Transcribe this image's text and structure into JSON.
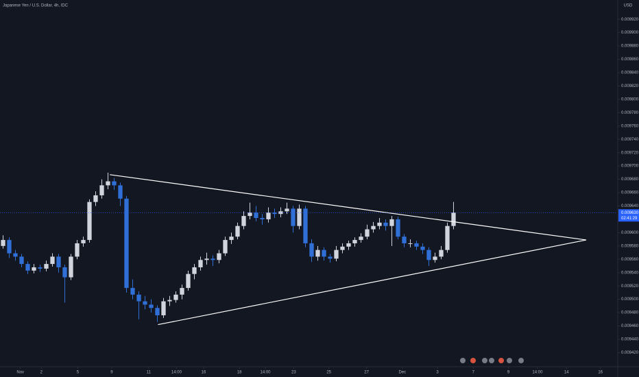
{
  "header": {
    "symbol": "Japanese Yen / U.S. Dollar, 4h, IDC",
    "currency": "USD"
  },
  "chart_data": {
    "type": "candlestick",
    "up_color": "#d1d4dc",
    "down_color": "#2f6fd6",
    "open": [
      0.00958,
      0.009589,
      0.009569,
      0.009564,
      0.009553,
      0.009543,
      0.009548,
      0.009546,
      0.009553,
      0.009564,
      0.009548,
      0.009533,
      0.009564,
      0.009584,
      0.009589,
      0.009646,
      0.009656,
      0.009671,
      0.009677,
      0.009671,
      0.009651,
      0.009517,
      0.009507,
      0.009497,
      0.009492,
      0.009487,
      0.009476,
      0.009497,
      0.009499,
      0.009507,
      0.009517,
      0.009538,
      0.009548,
      0.009559,
      0.009561,
      0.009559,
      0.009569,
      0.009589,
      0.009594,
      0.00961,
      0.009625,
      0.00963,
      0.009622,
      0.00962,
      0.00963,
      0.009628,
      0.009632,
      0.009636,
      0.00961,
      0.009636,
      0.009584,
      0.009564,
      0.009574,
      0.009564,
      0.009561,
      0.009574,
      0.009579,
      0.009584,
      0.009589,
      0.009594,
      0.009605,
      0.00961,
      0.009615,
      0.00961,
      0.00962,
      0.009594,
      0.009584,
      0.009584,
      0.009579,
      0.009574,
      0.009559,
      0.009564,
      0.009574,
      0.00961
    ],
    "high": [
      0.009596,
      0.009593,
      0.009574,
      0.009568,
      0.009557,
      0.009553,
      0.009552,
      0.009558,
      0.009569,
      0.009568,
      0.009552,
      0.009568,
      0.009589,
      0.009594,
      0.00965,
      0.009662,
      0.00968,
      0.00969,
      0.009682,
      0.009675,
      0.009655,
      0.00953,
      0.009512,
      0.009505,
      0.0095,
      0.009491,
      0.009502,
      0.009505,
      0.009512,
      0.009522,
      0.009543,
      0.009553,
      0.009564,
      0.00957,
      0.009566,
      0.009574,
      0.009594,
      0.0096,
      0.009615,
      0.009632,
      0.009645,
      0.00964,
      0.009628,
      0.009638,
      0.009636,
      0.009638,
      0.009645,
      0.00964,
      0.009642,
      0.00964,
      0.00959,
      0.00958,
      0.009578,
      0.009568,
      0.00958,
      0.009584,
      0.009588,
      0.009593,
      0.009599,
      0.009612,
      0.009616,
      0.009622,
      0.00962,
      0.009625,
      0.009624,
      0.009598,
      0.00959,
      0.009588,
      0.009584,
      0.009578,
      0.00957,
      0.00958,
      0.009615,
      0.009646
    ],
    "low": [
      0.009576,
      0.009562,
      0.009558,
      0.009548,
      0.009538,
      0.009539,
      0.009541,
      0.009542,
      0.009549,
      0.00954,
      0.009495,
      0.009529,
      0.00956,
      0.009579,
      0.009585,
      0.00964,
      0.009651,
      0.009665,
      0.009664,
      0.00964,
      0.00951,
      0.0095,
      0.00947,
      0.009485,
      0.00948,
      0.009466,
      0.009472,
      0.00949,
      0.009495,
      0.0095,
      0.009513,
      0.00953,
      0.009543,
      0.009552,
      0.00955,
      0.009554,
      0.009565,
      0.009583,
      0.00959,
      0.009605,
      0.00962,
      0.009617,
      0.009612,
      0.009615,
      0.009622,
      0.009623,
      0.009628,
      0.0096,
      0.009605,
      0.009578,
      0.009556,
      0.009558,
      0.009558,
      0.009555,
      0.009557,
      0.009569,
      0.009574,
      0.009579,
      0.009585,
      0.00959,
      0.0096,
      0.009605,
      0.009603,
      0.00958,
      0.00959,
      0.009578,
      0.009578,
      0.009574,
      0.009568,
      0.00955,
      0.009555,
      0.00956,
      0.00957,
      0.009605
    ],
    "close": [
      0.009589,
      0.009569,
      0.009564,
      0.009553,
      0.009543,
      0.009548,
      0.009546,
      0.009553,
      0.009564,
      0.009548,
      0.009533,
      0.009564,
      0.009584,
      0.009589,
      0.009646,
      0.009656,
      0.009671,
      0.009677,
      0.009671,
      0.009651,
      0.009517,
      0.009507,
      0.009497,
      0.009492,
      0.009487,
      0.009476,
      0.009497,
      0.009499,
      0.009507,
      0.009517,
      0.009538,
      0.009548,
      0.009559,
      0.009561,
      0.009559,
      0.009569,
      0.009589,
      0.009594,
      0.00961,
      0.009625,
      0.00963,
      0.009622,
      0.00962,
      0.00963,
      0.009628,
      0.009632,
      0.009636,
      0.00961,
      0.009636,
      0.009584,
      0.009564,
      0.009574,
      0.009564,
      0.009561,
      0.009574,
      0.009579,
      0.009584,
      0.009589,
      0.009594,
      0.009605,
      0.00961,
      0.009615,
      0.00961,
      0.00962,
      0.009594,
      0.009584,
      0.009584,
      0.009579,
      0.009574,
      0.009559,
      0.009564,
      0.009574,
      0.00961,
      0.00963
    ],
    "ylim": [
      0.009404,
      0.009949
    ],
    "yticks": [
      {
        "value": 0.00942,
        "label": "0.009420"
      },
      {
        "value": 0.00944,
        "label": "0.009440"
      },
      {
        "value": 0.00946,
        "label": "0.009460"
      },
      {
        "value": 0.00948,
        "label": "0.009480"
      },
      {
        "value": 0.0095,
        "label": "0.009500"
      },
      {
        "value": 0.00952,
        "label": "0.009520"
      },
      {
        "value": 0.00954,
        "label": "0.009540"
      },
      {
        "value": 0.00956,
        "label": "0.009560"
      },
      {
        "value": 0.00958,
        "label": "0.009580"
      },
      {
        "value": 0.0096,
        "label": "0.009600"
      },
      {
        "value": 0.00962,
        "label": "0.009620"
      },
      {
        "value": 0.00964,
        "label": "0.009640"
      },
      {
        "value": 0.00966,
        "label": "0.009660"
      },
      {
        "value": 0.00968,
        "label": "0.009680"
      },
      {
        "value": 0.0097,
        "label": "0.009700"
      },
      {
        "value": 0.00972,
        "label": "0.009720"
      },
      {
        "value": 0.00974,
        "label": "0.009740"
      },
      {
        "value": 0.00976,
        "label": "0.009760"
      },
      {
        "value": 0.00978,
        "label": "0.009780"
      },
      {
        "value": 0.0098,
        "label": "0.009800"
      },
      {
        "value": 0.00982,
        "label": "0.009820"
      },
      {
        "value": 0.00984,
        "label": "0.009840"
      },
      {
        "value": 0.00986,
        "label": "0.009860"
      },
      {
        "value": 0.00988,
        "label": "0.009880"
      },
      {
        "value": 0.0099,
        "label": "0.009900"
      },
      {
        "value": 0.00992,
        "label": "0.009920"
      }
    ],
    "xlim": [
      0,
      100
    ],
    "xticks": [
      {
        "value": 3.3,
        "label": "Nov"
      },
      {
        "value": 6.7,
        "label": "2"
      },
      {
        "value": 12.6,
        "label": "5"
      },
      {
        "value": 18.1,
        "label": "9"
      },
      {
        "value": 24.1,
        "label": "11"
      },
      {
        "value": 28.6,
        "label": "14:00"
      },
      {
        "value": 33,
        "label": "16"
      },
      {
        "value": 38.8,
        "label": "18"
      },
      {
        "value": 43,
        "label": "14:00"
      },
      {
        "value": 47.6,
        "label": "23"
      },
      {
        "value": 53.3,
        "label": "25"
      },
      {
        "value": 59.4,
        "label": "27"
      },
      {
        "value": 65.2,
        "label": "Dec"
      },
      {
        "value": 70.9,
        "label": "3"
      },
      {
        "value": 76.7,
        "label": "7"
      },
      {
        "value": 82.4,
        "label": "9"
      },
      {
        "value": 87.1,
        "label": "14:00"
      },
      {
        "value": 91.8,
        "label": "14"
      },
      {
        "value": 97.3,
        "label": "16"
      }
    ],
    "trendlines": [
      {
        "color": "#ffffff",
        "x": [
          17.8,
          95
        ],
        "y": [
          0.009687,
          0.009589
        ]
      },
      {
        "color": "#ffffff",
        "x": [
          25.6,
          95
        ],
        "y": [
          0.009462,
          0.009589
        ]
      }
    ],
    "last_price": {
      "value": 0.00963,
      "label": "0.009630",
      "countdown": "02:41:29",
      "color": "#2962ff"
    }
  }
}
